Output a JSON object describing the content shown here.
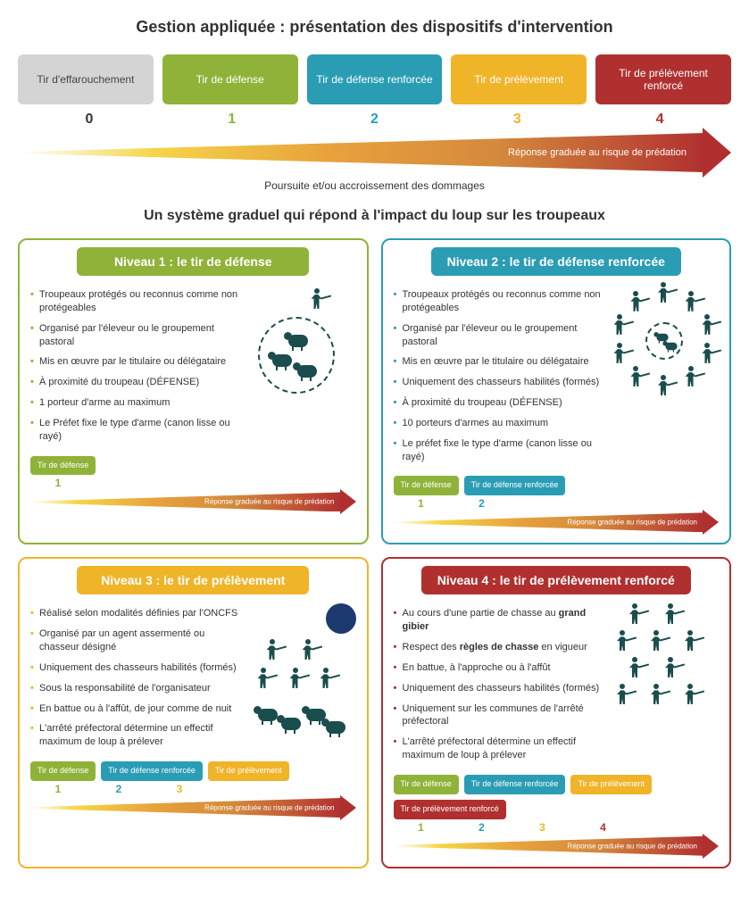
{
  "title": "Gestion appliquée : présentation des dispositifs d'intervention",
  "section_title": "Un système graduel qui répond à l'impact du loup sur les troupeaux",
  "arrow_label": "Réponse graduée au risque de prédation",
  "sub_caption": "Poursuite et/ou accroissement des dommages",
  "colors": {
    "lvl0": "#d4d4d4",
    "lvl1": "#8fb339",
    "lvl2": "#2a9db5",
    "lvl3": "#f0b429",
    "lvl4": "#b03030",
    "num0": "#333333",
    "num1": "#8fb339",
    "num2": "#2a9db5",
    "num3": "#f0b429",
    "num4": "#b03030"
  },
  "levels": [
    {
      "n": "0",
      "label": "Tir d'effarouchement",
      "bg": "#d4d4d4",
      "txt": "#444444"
    },
    {
      "n": "1",
      "label": "Tir de défense",
      "bg": "#8fb339",
      "txt": "#ffffff"
    },
    {
      "n": "2",
      "label": "Tir de défense renforcée",
      "bg": "#2a9db5",
      "txt": "#ffffff"
    },
    {
      "n": "3",
      "label": "Tir de prélèvement",
      "bg": "#f0b429",
      "txt": "#ffffff"
    },
    {
      "n": "4",
      "label": "Tir de prélèvement renforcé",
      "bg": "#b03030",
      "txt": "#ffffff"
    }
  ],
  "panels": [
    {
      "id": 1,
      "border": "#8fb339",
      "head_bg": "#8fb339",
      "title": "Niveau 1 : le tir de défense",
      "bullets": [
        "Troupeaux protégés ou reconnus comme non protégeables",
        "Organisé par l'éleveur ou le groupement pastoral",
        "Mis en œuvre par le titulaire ou délégataire",
        "À proximité du troupeau (DÉFENSE)",
        "1 porteur d'arme au maximum",
        "Le Préfet fixe le type d'arme (canon lisse ou rayé)"
      ],
      "bullet_color": "#8fb339",
      "mini": [
        1
      ]
    },
    {
      "id": 2,
      "border": "#2a9db5",
      "head_bg": "#2a9db5",
      "title": "Niveau 2 : le tir de défense renforcée",
      "bullets": [
        "Troupeaux protégés ou reconnus comme non protégeables",
        "Organisé par l'éleveur ou le groupement pastoral",
        "Mis en œuvre par le titulaire ou délégataire",
        "Uniquement des chasseurs habilités (formés)",
        "À proximité du troupeau (DÉFENSE)",
        "10 porteurs d'armes au maximum",
        "Le préfet fixe le type d'arme (canon lisse ou rayé)"
      ],
      "bullet_color": "#2a9db5",
      "mini": [
        1,
        2
      ]
    },
    {
      "id": 3,
      "border": "#f0b429",
      "head_bg": "#f0b429",
      "title": "Niveau 3 : le tir de prélèvement",
      "bullets": [
        "Réalisé selon modalités définies par l'ONCFS",
        "Organisé par un agent assermenté ou chasseur désigné",
        "Uniquement des chasseurs habilités (formés)",
        "Sous la responsabilité de l'organisateur",
        "En battue ou à l'affût, de jour comme de nuit",
        "L'arrêté préfectoral détermine un effectif maximum de loup à prélever"
      ],
      "bullet_color": "#f0b429",
      "mini": [
        1,
        2,
        3
      ]
    },
    {
      "id": 4,
      "border": "#b03030",
      "head_bg": "#b03030",
      "title": "Niveau 4 : le tir de prélèvement renforcé",
      "bullets_html": [
        "Au cours d'une partie de chasse au <b>grand gibier</b>",
        "Respect des <b>règles de chasse</b> en vigueur",
        "En battue, à l'approche ou à l'affût",
        "Uniquement des chasseurs habilités (formés)",
        "Uniquement sur les communes de l'arrêté préfectoral",
        "L'arrêté préfectoral détermine un effectif maximum de loup à prélever"
      ],
      "bullet_color": "#b03030",
      "mini": [
        1,
        2,
        3,
        4
      ]
    }
  ]
}
